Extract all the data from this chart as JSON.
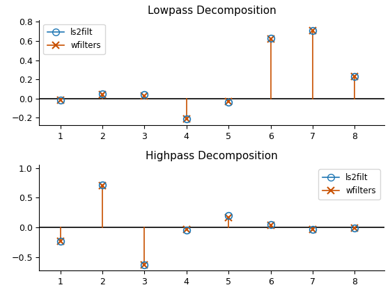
{
  "lp_x": [
    1,
    2,
    3,
    4,
    5,
    6,
    7,
    8
  ],
  "lp_ls2filt": [
    -0.02,
    0.05,
    0.04,
    -0.21,
    -0.04,
    0.63,
    0.71,
    0.23
  ],
  "lp_wfilters": [
    -0.02,
    0.04,
    0.03,
    -0.21,
    -0.03,
    0.62,
    0.71,
    0.23
  ],
  "hp_x": [
    1,
    2,
    3,
    4,
    5,
    6,
    7,
    8
  ],
  "hp_ls2filt": [
    -0.23,
    0.71,
    -0.63,
    -0.04,
    0.2,
    0.05,
    -0.03,
    -0.01
  ],
  "hp_wfilters": [
    -0.23,
    0.7,
    -0.63,
    -0.03,
    0.17,
    0.04,
    -0.03,
    -0.01
  ],
  "color_ls2filt": "#1f77b4",
  "color_wfilters": "#c85000",
  "title_lp": "Lowpass Decomposition",
  "title_hp": "Highpass Decomposition",
  "legend_ls2filt": "ls2filt",
  "legend_wfilters": "wfilters",
  "lp_ylim": [
    -0.28,
    0.82
  ],
  "hp_ylim": [
    -0.72,
    1.05
  ],
  "xlim": [
    0.5,
    8.7
  ]
}
